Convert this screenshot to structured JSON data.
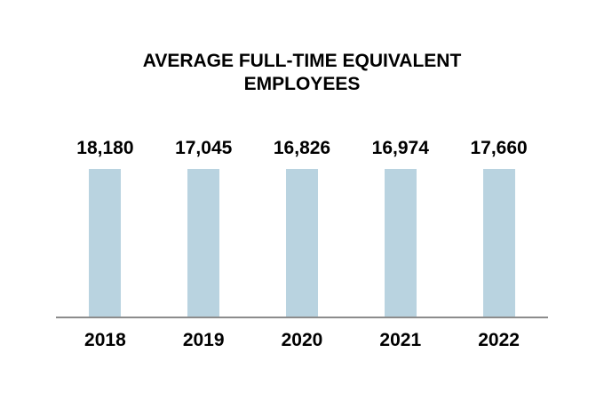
{
  "colors": {
    "bar": "#B9D3E0",
    "axis": "#8C8C8C",
    "text": "#000000",
    "background": "#FFFFFF"
  },
  "chart_data": {
    "type": "bar",
    "title": "AVERAGE FULL-TIME EQUIVALENT EMPLOYEES",
    "categories": [
      "2018",
      "2019",
      "2020",
      "2021",
      "2022"
    ],
    "values": [
      18180,
      17045,
      16826,
      16974,
      17660
    ],
    "value_labels": [
      "18,180",
      "17,045",
      "16,826",
      "16,974",
      "17,660"
    ],
    "xlabel": "",
    "ylabel": "",
    "ylim": [
      0,
      18180
    ],
    "y_axis_visible": false,
    "gridlines": false,
    "data_labels": "above bars",
    "legend": "none"
  }
}
